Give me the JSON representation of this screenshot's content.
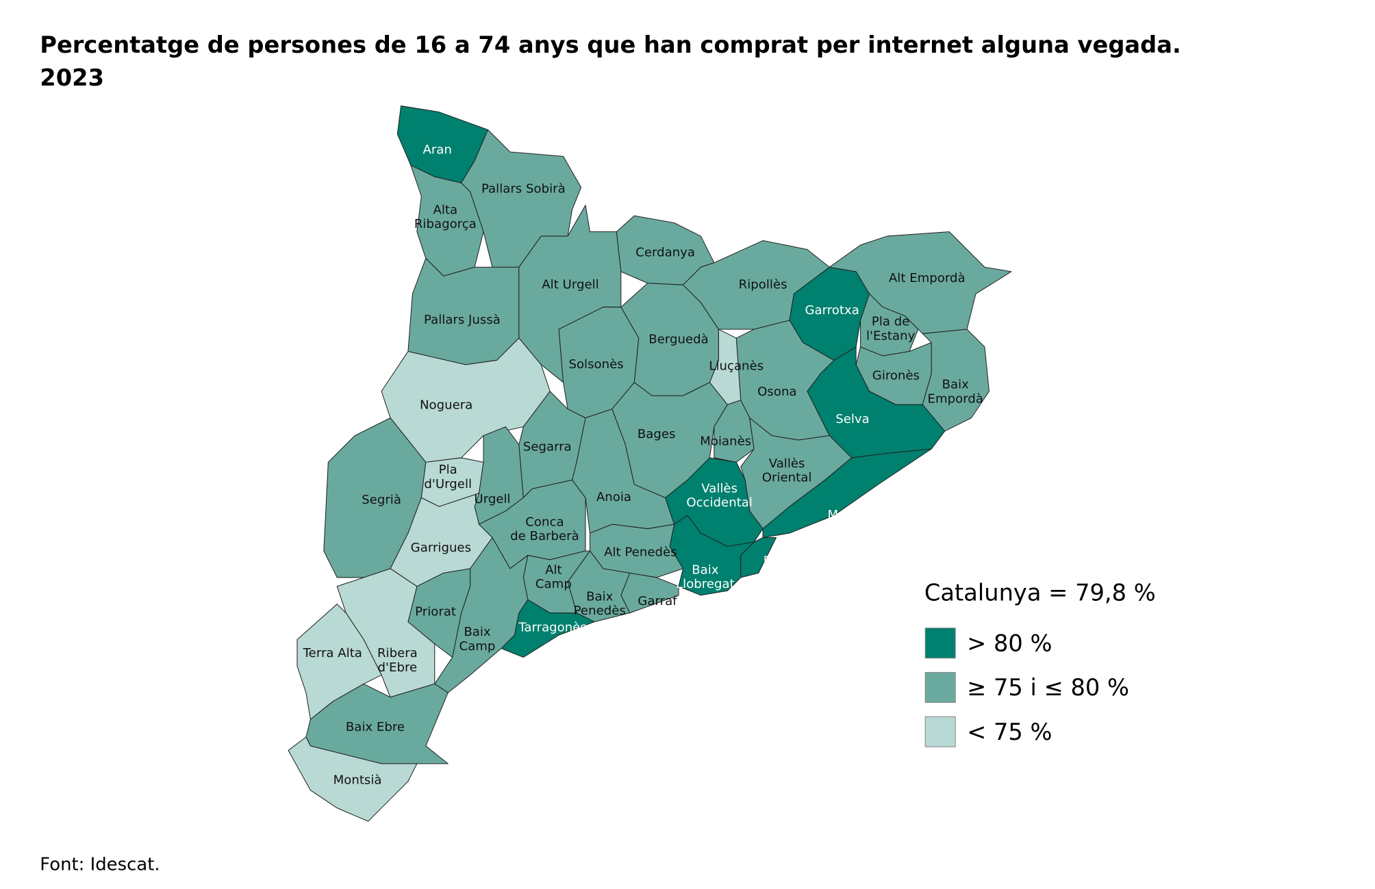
{
  "title": "Percentatge de persones de 16 a 74 anys que han comprat per internet alguna vegada.\n2023",
  "source": "Font: Idescat.",
  "legend": {
    "title": "Catalunya = 79,8 %",
    "items": [
      {
        "label": "> 80 %",
        "color": "#00806e"
      },
      {
        "label": "≥ 75 i ≤ 80 %",
        "color": "#6aaa9e"
      },
      {
        "label": "< 75 %",
        "color": "#b9d9d4"
      }
    ]
  },
  "regions": [
    {
      "name": "Aran",
      "color": "#00806e"
    },
    {
      "name": "Pallars Sobirà",
      "color": "#6aaa9e"
    },
    {
      "name": "Alta\nRibagorça",
      "color": "#6aaa9e"
    },
    {
      "name": "Pallars Jussà",
      "color": "#6aaa9e"
    },
    {
      "name": "Alt Urgell",
      "color": "#6aaa9e"
    },
    {
      "name": "Cerdanya",
      "color": "#6aaa9e"
    },
    {
      "name": "Ripollès",
      "color": "#6aaa9e"
    },
    {
      "name": "Garrotxa",
      "color": "#00806e"
    },
    {
      "name": "Alt Empordà",
      "color": "#6aaa9e"
    },
    {
      "name": "Pla de\nl'Estany",
      "color": "#6aaa9e"
    },
    {
      "name": "Gironès",
      "color": "#6aaa9e"
    },
    {
      "name": "Baix\nEmpordà",
      "color": "#6aaa9e"
    },
    {
      "name": "Selva",
      "color": "#00806e"
    },
    {
      "name": "Osona",
      "color": "#6aaa9e"
    },
    {
      "name": "Lluçanès",
      "color": "#b9d9d4"
    },
    {
      "name": "Berguedà",
      "color": "#6aaa9e"
    },
    {
      "name": "Solsonès",
      "color": "#6aaa9e"
    },
    {
      "name": "Noguera",
      "color": "#b9d9d4"
    },
    {
      "name": "Segrià",
      "color": "#6aaa9e"
    },
    {
      "name": "Pla\nd'Urgell",
      "color": "#b9d9d4"
    },
    {
      "name": "Urgell",
      "color": "#6aaa9e"
    },
    {
      "name": "Garrigues",
      "color": "#b9d9d4"
    },
    {
      "name": "Segarra",
      "color": "#6aaa9e"
    },
    {
      "name": "Conca\nde Barberà",
      "color": "#6aaa9e"
    },
    {
      "name": "Anoia",
      "color": "#6aaa9e"
    },
    {
      "name": "Bages",
      "color": "#6aaa9e"
    },
    {
      "name": "Moianès",
      "color": "#6aaa9e"
    },
    {
      "name": "Vallès\nOriental",
      "color": "#6aaa9e"
    },
    {
      "name": "Vallès\nOccidental",
      "color": "#00806e"
    },
    {
      "name": "Maresme",
      "color": "#00806e"
    },
    {
      "name": "Barcelonès",
      "color": "#00806e"
    },
    {
      "name": "Baix\nLlobregat",
      "color": "#00806e"
    },
    {
      "name": "Alt Penedès",
      "color": "#6aaa9e"
    },
    {
      "name": "Garraf",
      "color": "#6aaa9e"
    },
    {
      "name": "Baix\nPenedès",
      "color": "#6aaa9e"
    },
    {
      "name": "Alt\nCamp",
      "color": "#6aaa9e"
    },
    {
      "name": "Tarragonès",
      "color": "#00806e"
    },
    {
      "name": "Baix\nCamp",
      "color": "#6aaa9e"
    },
    {
      "name": "Priorat",
      "color": "#6aaa9e"
    },
    {
      "name": "Ribera\nd'Ebre",
      "color": "#b9d9d4"
    },
    {
      "name": "Terra Alta",
      "color": "#b9d9d4"
    },
    {
      "name": "Baix Ebre",
      "color": "#6aaa9e"
    },
    {
      "name": "Montsià",
      "color": "#b9d9d4"
    }
  ]
}
